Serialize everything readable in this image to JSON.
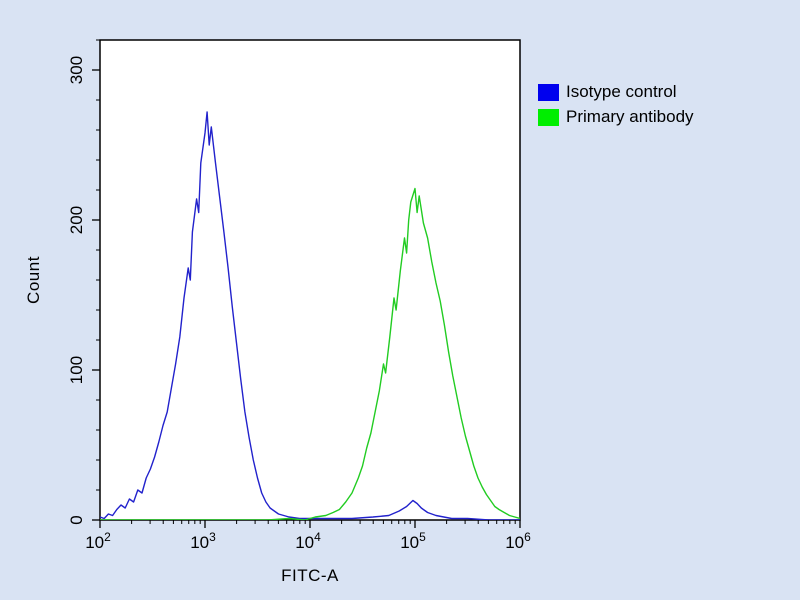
{
  "figure": {
    "background_color": "#d9e3f3",
    "plot_background": "#ffffff",
    "frame_color": "#000000"
  },
  "chart_data": {
    "type": "line",
    "title": "",
    "xlabel": "FITC-A",
    "ylabel": "Count",
    "x_scale": "log10",
    "x_range_log10": [
      2,
      6
    ],
    "ylim": [
      0,
      320
    ],
    "y_ticks": [
      0,
      100,
      200,
      300
    ],
    "y_minor_tick_step": 20,
    "x_tick_exponents": [
      2,
      3,
      4,
      5,
      6
    ],
    "grid": false,
    "legend_position": "top-right-outside",
    "series": [
      {
        "name": "Isotype control",
        "color": "#2222cc",
        "peak_log10_x": 3.02,
        "peak_count": 272,
        "points": [
          [
            2.0,
            2
          ],
          [
            2.04,
            1
          ],
          [
            2.08,
            4
          ],
          [
            2.12,
            3
          ],
          [
            2.16,
            7
          ],
          [
            2.2,
            10
          ],
          [
            2.24,
            8
          ],
          [
            2.28,
            14
          ],
          [
            2.32,
            12
          ],
          [
            2.36,
            20
          ],
          [
            2.4,
            18
          ],
          [
            2.44,
            28
          ],
          [
            2.48,
            34
          ],
          [
            2.52,
            42
          ],
          [
            2.56,
            52
          ],
          [
            2.6,
            63
          ],
          [
            2.64,
            72
          ],
          [
            2.68,
            88
          ],
          [
            2.72,
            104
          ],
          [
            2.76,
            122
          ],
          [
            2.8,
            148
          ],
          [
            2.84,
            168
          ],
          [
            2.86,
            160
          ],
          [
            2.88,
            192
          ],
          [
            2.92,
            214
          ],
          [
            2.94,
            205
          ],
          [
            2.96,
            238
          ],
          [
            3.0,
            258
          ],
          [
            3.02,
            272
          ],
          [
            3.04,
            250
          ],
          [
            3.06,
            262
          ],
          [
            3.1,
            238
          ],
          [
            3.14,
            215
          ],
          [
            3.18,
            192
          ],
          [
            3.22,
            168
          ],
          [
            3.26,
            142
          ],
          [
            3.3,
            118
          ],
          [
            3.34,
            94
          ],
          [
            3.38,
            72
          ],
          [
            3.42,
            55
          ],
          [
            3.46,
            40
          ],
          [
            3.5,
            28
          ],
          [
            3.54,
            18
          ],
          [
            3.58,
            12
          ],
          [
            3.62,
            8
          ],
          [
            3.7,
            4
          ],
          [
            3.8,
            2
          ],
          [
            3.9,
            1
          ],
          [
            4.0,
            1
          ],
          [
            4.2,
            1
          ],
          [
            4.4,
            1
          ],
          [
            4.6,
            2
          ],
          [
            4.75,
            3
          ],
          [
            4.85,
            6
          ],
          [
            4.92,
            9
          ],
          [
            4.98,
            13
          ],
          [
            5.02,
            11
          ],
          [
            5.06,
            8
          ],
          [
            5.12,
            5
          ],
          [
            5.2,
            3
          ],
          [
            5.35,
            1
          ],
          [
            5.5,
            1
          ],
          [
            5.7,
            0
          ],
          [
            6.0,
            0
          ]
        ]
      },
      {
        "name": "Primary antibody",
        "color": "#22cc22",
        "peak_log10_x": 5.0,
        "peak_count": 221,
        "points": [
          [
            2.0,
            0
          ],
          [
            3.0,
            0
          ],
          [
            3.6,
            0
          ],
          [
            3.8,
            1
          ],
          [
            3.95,
            0
          ],
          [
            4.05,
            2
          ],
          [
            4.15,
            3
          ],
          [
            4.22,
            5
          ],
          [
            4.28,
            7
          ],
          [
            4.34,
            12
          ],
          [
            4.4,
            18
          ],
          [
            4.46,
            28
          ],
          [
            4.5,
            36
          ],
          [
            4.54,
            48
          ],
          [
            4.58,
            58
          ],
          [
            4.62,
            72
          ],
          [
            4.66,
            86
          ],
          [
            4.7,
            104
          ],
          [
            4.72,
            98
          ],
          [
            4.76,
            122
          ],
          [
            4.8,
            148
          ],
          [
            4.82,
            140
          ],
          [
            4.86,
            166
          ],
          [
            4.9,
            188
          ],
          [
            4.92,
            178
          ],
          [
            4.94,
            200
          ],
          [
            4.96,
            212
          ],
          [
            5.0,
            221
          ],
          [
            5.02,
            205
          ],
          [
            5.04,
            216
          ],
          [
            5.08,
            198
          ],
          [
            5.12,
            188
          ],
          [
            5.16,
            172
          ],
          [
            5.2,
            158
          ],
          [
            5.24,
            146
          ],
          [
            5.28,
            130
          ],
          [
            5.32,
            112
          ],
          [
            5.36,
            96
          ],
          [
            5.4,
            82
          ],
          [
            5.44,
            68
          ],
          [
            5.48,
            56
          ],
          [
            5.52,
            46
          ],
          [
            5.56,
            36
          ],
          [
            5.6,
            28
          ],
          [
            5.64,
            22
          ],
          [
            5.68,
            17
          ],
          [
            5.72,
            13
          ],
          [
            5.76,
            9
          ],
          [
            5.8,
            7
          ],
          [
            5.85,
            5
          ],
          [
            5.9,
            3
          ],
          [
            5.95,
            2
          ],
          [
            6.0,
            1
          ]
        ]
      }
    ]
  },
  "legend": {
    "items": [
      {
        "label": "Isotype control",
        "swatch_color": "#0000ee"
      },
      {
        "label": "Primary antibody",
        "swatch_color": "#00ee00"
      }
    ]
  }
}
